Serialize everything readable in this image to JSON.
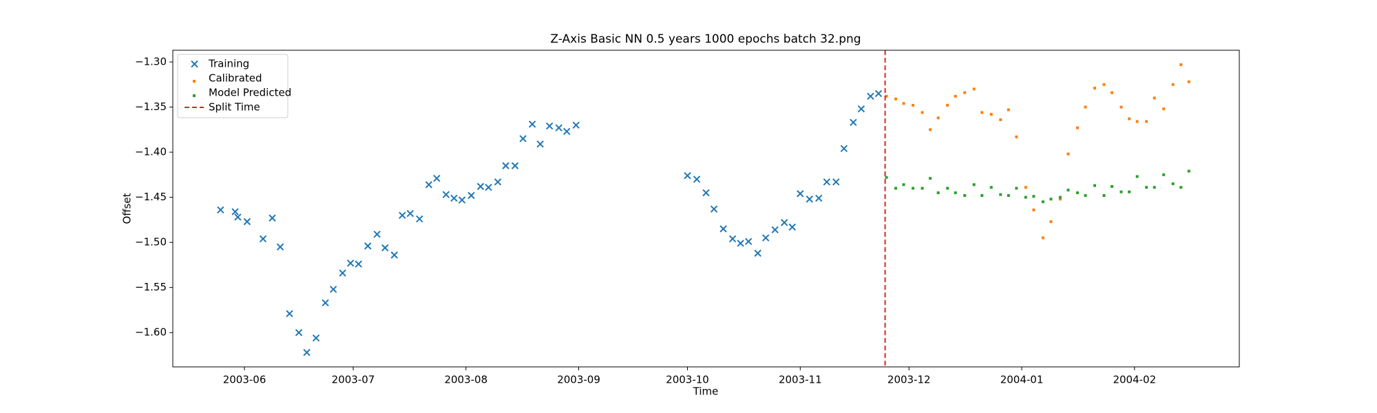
{
  "chart_data": {
    "type": "scatter",
    "title": "Z-Axis Basic NN 0.5 years 1000 epochs batch 32.png",
    "x_label": "Time",
    "y_label": "Offset",
    "xlim": [
      2003.36,
      2004.164
    ],
    "ylim": [
      -1.638,
      -1.287
    ],
    "xticks": [
      {
        "value": 2003.414,
        "label": "2003-06"
      },
      {
        "value": 2003.496,
        "label": "2003-07"
      },
      {
        "value": 2003.581,
        "label": "2003-08"
      },
      {
        "value": 2003.666,
        "label": "2003-09"
      },
      {
        "value": 2003.748,
        "label": "2003-10"
      },
      {
        "value": 2003.833,
        "label": "2003-11"
      },
      {
        "value": 2003.915,
        "label": "2003-12"
      },
      {
        "value": 2004.0,
        "label": "2004-01"
      },
      {
        "value": 2004.085,
        "label": "2004-02"
      }
    ],
    "yticks": [
      {
        "value": -1.3,
        "label": "−1.30"
      },
      {
        "value": -1.35,
        "label": "−1.35"
      },
      {
        "value": -1.4,
        "label": "−1.40"
      },
      {
        "value": -1.45,
        "label": "−1.45"
      },
      {
        "value": -1.5,
        "label": "−1.50"
      },
      {
        "value": -1.55,
        "label": "−1.55"
      },
      {
        "value": -1.6,
        "label": "−1.60"
      }
    ],
    "grid": false,
    "legend": "upper left",
    "series": [
      {
        "name": "Training",
        "color": "#1f77b4",
        "marker": "x",
        "x": [
          2003.396,
          2003.407,
          2003.409,
          2003.416,
          2003.428,
          2003.435,
          2003.441,
          2003.448,
          2003.455,
          2003.461,
          2003.468,
          2003.475,
          2003.481,
          2003.488,
          2003.494,
          2003.5,
          2003.507,
          2003.514,
          2003.52,
          2003.527,
          2003.533,
          2003.539,
          2003.546,
          2003.553,
          2003.559,
          2003.566,
          2003.572,
          2003.578,
          2003.585,
          2003.592,
          2003.598,
          2003.605,
          2003.611,
          2003.618,
          2003.624,
          2003.631,
          2003.637,
          2003.644,
          2003.651,
          2003.657,
          2003.664,
          2003.748,
          2003.755,
          2003.762,
          2003.768,
          2003.775,
          2003.782,
          2003.788,
          2003.794,
          2003.801,
          2003.807,
          2003.814,
          2003.821,
          2003.827,
          2003.833,
          2003.84,
          2003.847,
          2003.853,
          2003.86,
          2003.866,
          2003.873,
          2003.879,
          2003.886,
          2003.892
        ],
        "values": [
          -1.464,
          -1.466,
          -1.472,
          -1.477,
          -1.496,
          -1.473,
          -1.505,
          -1.579,
          -1.6,
          -1.622,
          -1.606,
          -1.567,
          -1.552,
          -1.534,
          -1.523,
          -1.524,
          -1.504,
          -1.491,
          -1.506,
          -1.514,
          -1.47,
          -1.468,
          -1.474,
          -1.436,
          -1.429,
          -1.447,
          -1.451,
          -1.453,
          -1.448,
          -1.438,
          -1.439,
          -1.433,
          -1.415,
          -1.415,
          -1.385,
          -1.369,
          -1.391,
          -1.371,
          -1.373,
          -1.377,
          -1.37,
          -1.426,
          -1.43,
          -1.445,
          -1.463,
          -1.485,
          -1.496,
          -1.501,
          -1.499,
          -1.512,
          -1.495,
          -1.486,
          -1.478,
          -1.483,
          -1.446,
          -1.452,
          -1.451,
          -1.433,
          -1.433,
          -1.396,
          -1.367,
          -1.352,
          -1.338,
          -1.335
        ]
      },
      {
        "name": "Calibrated",
        "color": "#ff7f0e",
        "marker": "s",
        "x": [
          2003.898,
          2003.905,
          2003.911,
          2003.918,
          2003.925,
          2003.931,
          2003.937,
          2003.944,
          2003.95,
          2003.957,
          2003.964,
          2003.97,
          2003.977,
          2003.984,
          2003.99,
          2003.996,
          2004.003,
          2004.009,
          2004.016,
          2004.022,
          2004.029,
          2004.035,
          2004.042,
          2004.048,
          2004.055,
          2004.062,
          2004.068,
          2004.075,
          2004.081,
          2004.087,
          2004.094,
          2004.1,
          2004.107,
          2004.114,
          2004.12,
          2004.126
        ],
        "values": [
          -1.338,
          -1.341,
          -1.346,
          -1.348,
          -1.356,
          -1.375,
          -1.362,
          -1.348,
          -1.338,
          -1.334,
          -1.33,
          -1.356,
          -1.358,
          -1.364,
          -1.353,
          -1.383,
          -1.439,
          -1.464,
          -1.495,
          -1.477,
          -1.452,
          -1.402,
          -1.373,
          -1.35,
          -1.329,
          -1.325,
          -1.334,
          -1.35,
          -1.363,
          -1.366,
          -1.366,
          -1.34,
          -1.352,
          -1.325,
          -1.303,
          -1.322
        ]
      },
      {
        "name": "Model Predicted",
        "color": "#2ca02c",
        "marker": "s",
        "x": [
          2003.898,
          2003.905,
          2003.911,
          2003.918,
          2003.925,
          2003.931,
          2003.937,
          2003.944,
          2003.95,
          2003.957,
          2003.964,
          2003.97,
          2003.977,
          2003.984,
          2003.99,
          2003.996,
          2004.003,
          2004.009,
          2004.016,
          2004.022,
          2004.029,
          2004.035,
          2004.042,
          2004.048,
          2004.055,
          2004.062,
          2004.068,
          2004.075,
          2004.081,
          2004.087,
          2004.094,
          2004.1,
          2004.107,
          2004.114,
          2004.12,
          2004.126
        ],
        "values": [
          -1.428,
          -1.44,
          -1.436,
          -1.44,
          -1.44,
          -1.429,
          -1.445,
          -1.44,
          -1.445,
          -1.448,
          -1.436,
          -1.448,
          -1.439,
          -1.447,
          -1.448,
          -1.44,
          -1.45,
          -1.449,
          -1.455,
          -1.452,
          -1.45,
          -1.442,
          -1.445,
          -1.448,
          -1.437,
          -1.448,
          -1.438,
          -1.444,
          -1.444,
          -1.427,
          -1.439,
          -1.439,
          -1.425,
          -1.435,
          -1.439,
          -1.421
        ]
      },
      {
        "name": "Split Time",
        "color": "#d62728",
        "marker": "vline",
        "x": [
          2003.897
        ]
      }
    ]
  }
}
